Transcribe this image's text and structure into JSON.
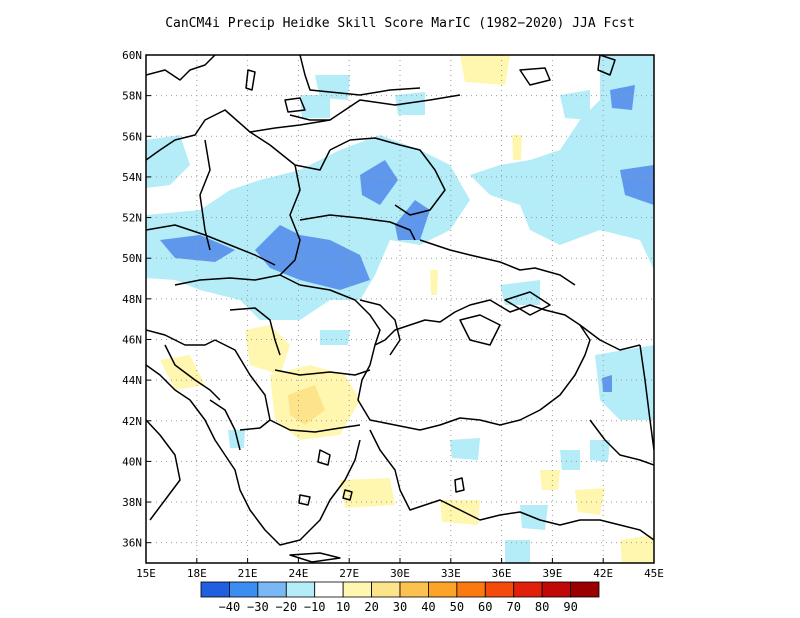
{
  "title": "CanCM4i Precip Heidke Skill Score MarIC (1982−2020) JJA Fcst",
  "map": {
    "lon_range": [
      15,
      45
    ],
    "lat_range": [
      35,
      60
    ],
    "lon_ticks": [
      "15E",
      "18E",
      "21E",
      "24E",
      "27E",
      "30E",
      "33E",
      "36E",
      "39E",
      "42E",
      "45E"
    ],
    "lat_ticks": [
      "36N",
      "38N",
      "40N",
      "42N",
      "44N",
      "46N",
      "48N",
      "50N",
      "52N",
      "54N",
      "56N",
      "58N",
      "60N"
    ],
    "grid": "dotted"
  },
  "colorbar": {
    "colors": [
      "#1f5fe0",
      "#3b8ef0",
      "#7ab8f5",
      "#b4ecf7",
      "#ffffff",
      "#fff7b0",
      "#fde48a",
      "#fcc250",
      "#fba428",
      "#fa7a10",
      "#f44a0c",
      "#e0200a",
      "#c10808",
      "#9a0000"
    ],
    "labels": [
      "−40",
      "−30",
      "−20",
      "−10",
      "10",
      "20",
      "30",
      "40",
      "50",
      "60",
      "70",
      "80",
      "90"
    ]
  },
  "shading_colors": {
    "light_blue": "#b4ecf7",
    "mid_blue": "#7ab8f5",
    "dark_blue": "#5f97ec",
    "light_yellow": "#fff7b0",
    "mid_yellow": "#fde48a"
  }
}
